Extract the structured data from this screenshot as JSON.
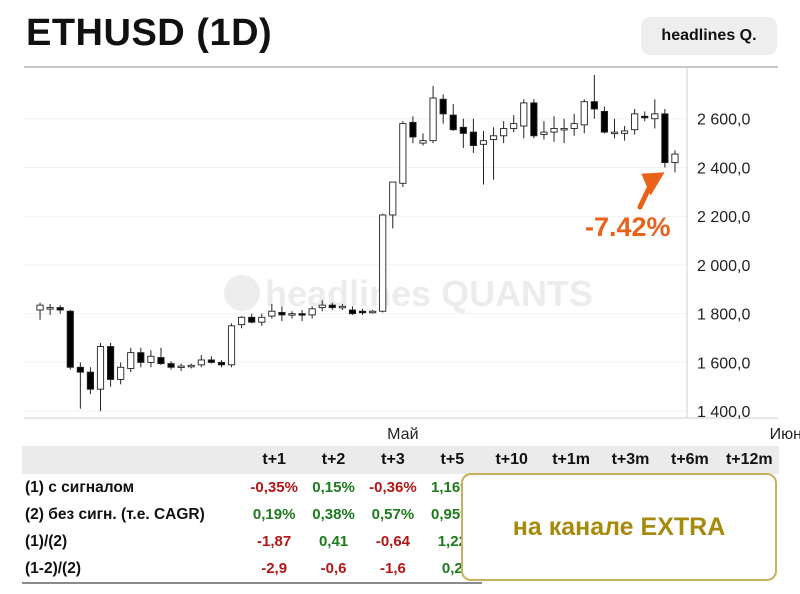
{
  "header": {
    "title": "ETHUSD (1D)",
    "badge": "headlines Q."
  },
  "chart_data": {
    "type": "candlestick",
    "symbol": "ETHUSD",
    "timeframe": "1D",
    "ylim": [
      1380,
      2800
    ],
    "yticks": [
      1400,
      1600,
      1800,
      2000,
      2200,
      2400,
      2600
    ],
    "ytick_labels": [
      "1 400,0",
      "1 600,0",
      "1 800,0",
      "2 000,0",
      "2 200,0",
      "2 400,0",
      "2 600,0"
    ],
    "month_labels": [
      {
        "label": "Май",
        "after_candle": 36
      },
      {
        "label": "Июн",
        "after_candle": 74
      }
    ],
    "watermark": "headlines QUANTS",
    "annotation": {
      "text": "-7.42%",
      "color": "#e8621a",
      "arrow_to_candle": 79
    },
    "up_color": "#ffffff",
    "down_color": "#000000",
    "candles": [
      {
        "o": 1815,
        "h": 1845,
        "l": 1775,
        "c": 1835
      },
      {
        "o": 1820,
        "h": 1840,
        "l": 1795,
        "c": 1825
      },
      {
        "o": 1825,
        "h": 1835,
        "l": 1800,
        "c": 1815
      },
      {
        "o": 1810,
        "h": 1815,
        "l": 1570,
        "c": 1580
      },
      {
        "o": 1580,
        "h": 1600,
        "l": 1410,
        "c": 1560
      },
      {
        "o": 1560,
        "h": 1580,
        "l": 1470,
        "c": 1490
      },
      {
        "o": 1490,
        "h": 1680,
        "l": 1400,
        "c": 1665
      },
      {
        "o": 1665,
        "h": 1680,
        "l": 1500,
        "c": 1530
      },
      {
        "o": 1530,
        "h": 1600,
        "l": 1510,
        "c": 1580
      },
      {
        "o": 1575,
        "h": 1660,
        "l": 1560,
        "c": 1640
      },
      {
        "o": 1640,
        "h": 1660,
        "l": 1580,
        "c": 1600
      },
      {
        "o": 1600,
        "h": 1650,
        "l": 1580,
        "c": 1625
      },
      {
        "o": 1620,
        "h": 1660,
        "l": 1590,
        "c": 1595
      },
      {
        "o": 1595,
        "h": 1605,
        "l": 1570,
        "c": 1580
      },
      {
        "o": 1580,
        "h": 1595,
        "l": 1565,
        "c": 1585
      },
      {
        "o": 1585,
        "h": 1595,
        "l": 1575,
        "c": 1588
      },
      {
        "o": 1590,
        "h": 1630,
        "l": 1580,
        "c": 1610
      },
      {
        "o": 1610,
        "h": 1625,
        "l": 1595,
        "c": 1600
      },
      {
        "o": 1600,
        "h": 1610,
        "l": 1580,
        "c": 1590
      },
      {
        "o": 1590,
        "h": 1760,
        "l": 1580,
        "c": 1750
      },
      {
        "o": 1755,
        "h": 1790,
        "l": 1740,
        "c": 1785
      },
      {
        "o": 1785,
        "h": 1800,
        "l": 1760,
        "c": 1765
      },
      {
        "o": 1765,
        "h": 1800,
        "l": 1750,
        "c": 1785
      },
      {
        "o": 1790,
        "h": 1840,
        "l": 1780,
        "c": 1810
      },
      {
        "o": 1805,
        "h": 1830,
        "l": 1770,
        "c": 1795
      },
      {
        "o": 1795,
        "h": 1810,
        "l": 1780,
        "c": 1800
      },
      {
        "o": 1800,
        "h": 1815,
        "l": 1770,
        "c": 1798
      },
      {
        "o": 1795,
        "h": 1830,
        "l": 1780,
        "c": 1820
      },
      {
        "o": 1825,
        "h": 1855,
        "l": 1810,
        "c": 1835
      },
      {
        "o": 1835,
        "h": 1845,
        "l": 1815,
        "c": 1825
      },
      {
        "o": 1825,
        "h": 1840,
        "l": 1815,
        "c": 1830
      },
      {
        "o": 1815,
        "h": 1830,
        "l": 1795,
        "c": 1800
      },
      {
        "o": 1810,
        "h": 1820,
        "l": 1795,
        "c": 1805
      },
      {
        "o": 1805,
        "h": 1815,
        "l": 1800,
        "c": 1810
      },
      {
        "o": 1810,
        "h": 2210,
        "l": 1805,
        "c": 2205
      },
      {
        "o": 2205,
        "h": 2340,
        "l": 2150,
        "c": 2340
      },
      {
        "o": 2335,
        "h": 2590,
        "l": 2320,
        "c": 2580
      },
      {
        "o": 2585,
        "h": 2610,
        "l": 2500,
        "c": 2525
      },
      {
        "o": 2500,
        "h": 2540,
        "l": 2490,
        "c": 2510
      },
      {
        "o": 2510,
        "h": 2735,
        "l": 2500,
        "c": 2685
      },
      {
        "o": 2680,
        "h": 2700,
        "l": 2580,
        "c": 2620
      },
      {
        "o": 2615,
        "h": 2660,
        "l": 2550,
        "c": 2555
      },
      {
        "o": 2565,
        "h": 2600,
        "l": 2480,
        "c": 2540
      },
      {
        "o": 2545,
        "h": 2600,
        "l": 2460,
        "c": 2490
      },
      {
        "o": 2495,
        "h": 2550,
        "l": 2330,
        "c": 2510
      },
      {
        "o": 2515,
        "h": 2565,
        "l": 2350,
        "c": 2530
      },
      {
        "o": 2530,
        "h": 2590,
        "l": 2500,
        "c": 2560
      },
      {
        "o": 2560,
        "h": 2615,
        "l": 2545,
        "c": 2580
      },
      {
        "o": 2570,
        "h": 2680,
        "l": 2520,
        "c": 2665
      },
      {
        "o": 2665,
        "h": 2680,
        "l": 2520,
        "c": 2530
      },
      {
        "o": 2535,
        "h": 2590,
        "l": 2515,
        "c": 2545
      },
      {
        "o": 2545,
        "h": 2610,
        "l": 2505,
        "c": 2560
      },
      {
        "o": 2555,
        "h": 2600,
        "l": 2500,
        "c": 2560
      },
      {
        "o": 2560,
        "h": 2620,
        "l": 2530,
        "c": 2580
      },
      {
        "o": 2575,
        "h": 2680,
        "l": 2540,
        "c": 2670
      },
      {
        "o": 2670,
        "h": 2780,
        "l": 2600,
        "c": 2640
      },
      {
        "o": 2630,
        "h": 2650,
        "l": 2540,
        "c": 2545
      },
      {
        "o": 2545,
        "h": 2600,
        "l": 2520,
        "c": 2545
      },
      {
        "o": 2540,
        "h": 2570,
        "l": 2510,
        "c": 2550
      },
      {
        "o": 2555,
        "h": 2640,
        "l": 2535,
        "c": 2620
      },
      {
        "o": 2610,
        "h": 2630,
        "l": 2590,
        "c": 2605
      },
      {
        "o": 2600,
        "h": 2680,
        "l": 2560,
        "c": 2620
      },
      {
        "o": 2620,
        "h": 2640,
        "l": 2400,
        "c": 2420
      },
      {
        "o": 2420,
        "h": 2470,
        "l": 2380,
        "c": 2455
      }
    ]
  },
  "table": {
    "headers": [
      "",
      "t+1",
      "t+2",
      "t+3",
      "t+5",
      "t+10",
      "t+1m",
      "t+3m",
      "t+6m",
      "t+12m"
    ],
    "rows": [
      {
        "label": "(1) с сигналом",
        "values": [
          {
            "text": "-0,35%",
            "tone": "neg"
          },
          {
            "text": "0,15%",
            "tone": "pos"
          },
          {
            "text": "-0,36%",
            "tone": "neg"
          },
          {
            "text": "1,16%",
            "tone": "pos"
          }
        ]
      },
      {
        "label": "(2) без сигн. (т.е. CAGR)",
        "values": [
          {
            "text": "0,19%",
            "tone": "pos"
          },
          {
            "text": "0,38%",
            "tone": "pos"
          },
          {
            "text": "0,57%",
            "tone": "pos"
          },
          {
            "text": "0,95%",
            "tone": "pos"
          }
        ]
      },
      {
        "label": "(1)/(2)",
        "values": [
          {
            "text": "-1,87",
            "tone": "neg"
          },
          {
            "text": "0,41",
            "tone": "pos"
          },
          {
            "text": "-0,64",
            "tone": "neg"
          },
          {
            "text": "1,22",
            "tone": "pos"
          }
        ]
      },
      {
        "label": "(1-2)/(2)",
        "values": [
          {
            "text": "-2,9",
            "tone": "neg"
          },
          {
            "text": "-0,6",
            "tone": "neg"
          },
          {
            "text": "-1,6",
            "tone": "neg"
          },
          {
            "text": "0,2",
            "tone": "pos"
          }
        ]
      }
    ],
    "extra_label": "на канале EXTRA"
  }
}
